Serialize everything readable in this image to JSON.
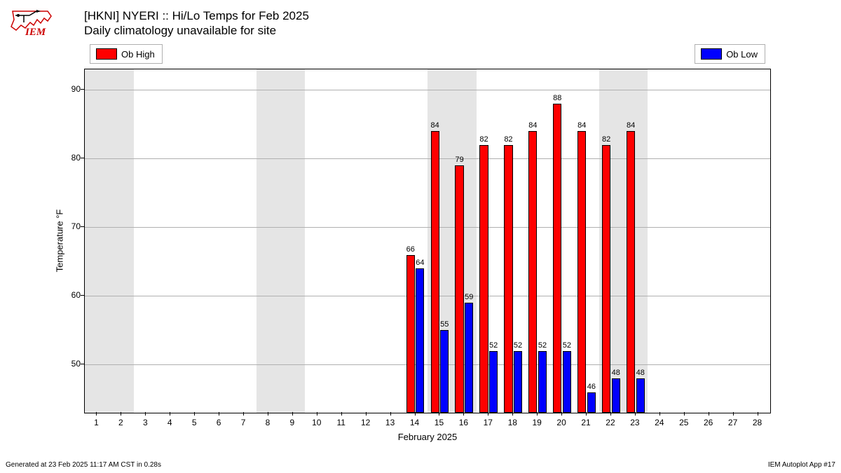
{
  "title_line1": "[HKNI] NYERI :: Hi/Lo Temps for Feb 2025",
  "title_line2": "Daily climatology unavailable for site",
  "legend": {
    "high": "Ob High",
    "low": "Ob Low"
  },
  "colors": {
    "high": "#ff0000",
    "low": "#0000ff",
    "weekend": "#e5e5e5",
    "grid": "#b0b0b0",
    "border": "#000000"
  },
  "chart": {
    "type": "bar",
    "xlabel": "February 2025",
    "ylabel": "Temperature °F",
    "xlim": [
      0.5,
      28.5
    ],
    "ylim": [
      43,
      93
    ],
    "yticks": [
      50,
      60,
      70,
      80,
      90
    ],
    "days": [
      1,
      2,
      3,
      4,
      5,
      6,
      7,
      8,
      9,
      10,
      11,
      12,
      13,
      14,
      15,
      16,
      17,
      18,
      19,
      20,
      21,
      22,
      23,
      24,
      25,
      26,
      27,
      28
    ],
    "weekend_bands": [
      [
        0.5,
        2.5
      ],
      [
        7.5,
        9.5
      ],
      [
        14.5,
        16.5
      ],
      [
        21.5,
        23.5
      ]
    ],
    "bar_width": 0.35,
    "bar_gap": 0.02,
    "series_high": {
      "14": 66,
      "15": 84,
      "16": 79,
      "17": 82,
      "18": 82,
      "19": 84,
      "20": 88,
      "21": 84,
      "22": 82,
      "23": 84
    },
    "series_low": {
      "14": 64,
      "15": 55,
      "16": 59,
      "17": 52,
      "18": 52,
      "19": 52,
      "20": 52,
      "21": 46,
      "22": 48,
      "23": 48
    }
  },
  "footer_left": "Generated at 23 Feb 2025 11:17 AM CST in 0.28s",
  "footer_right": "IEM Autoplot App #17",
  "logo_text": "IEM"
}
